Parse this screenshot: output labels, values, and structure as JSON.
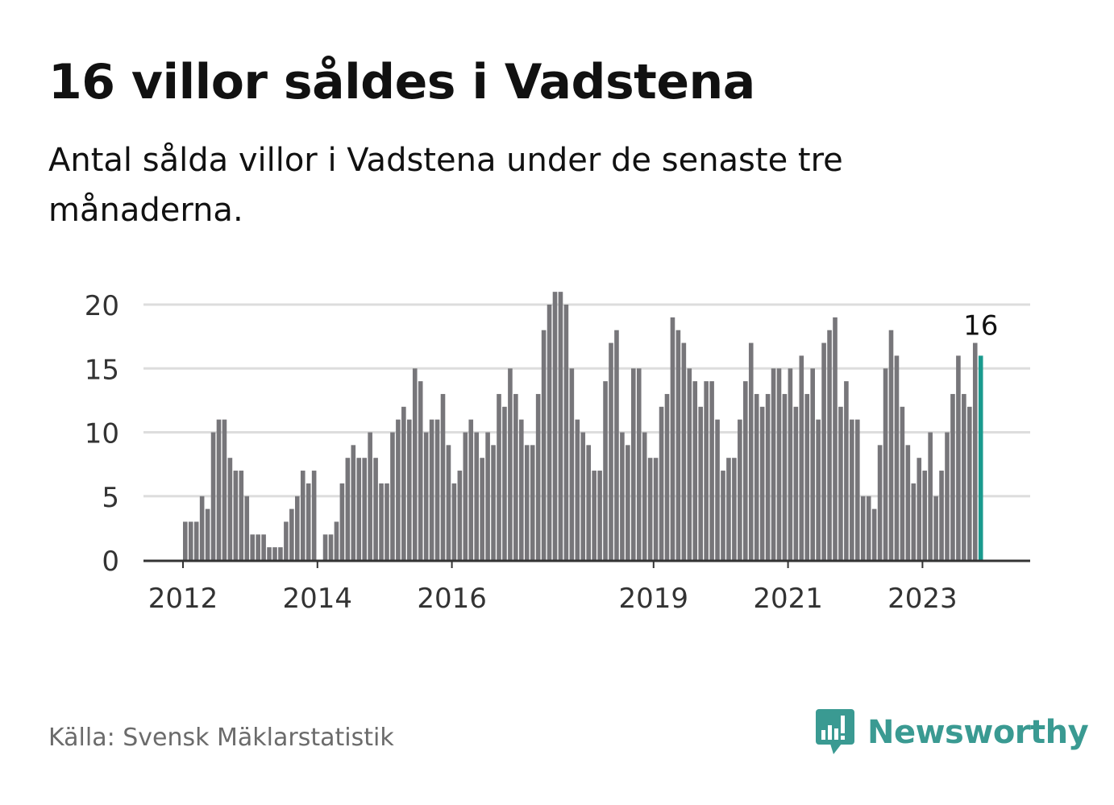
{
  "header": {
    "title": "16 villor såldes i Vadstena",
    "subtitle": "Antal sålda villor i Vadstena under de senaste tre månaderna."
  },
  "footer": {
    "source": "Källa: Svensk Mäklarstatistik",
    "brand": "Newsworthy"
  },
  "colors": {
    "bar": "#77767a",
    "highlight": "#1a9a8e",
    "grid": "#dddddd",
    "axis": "#333333",
    "brand": "#3a9a92"
  },
  "chart_data": {
    "type": "bar",
    "start": "2012-01",
    "ylim": [
      0,
      21
    ],
    "yticks": [
      0,
      5,
      10,
      15,
      20
    ],
    "xtick_labels": [
      "2012",
      "2014",
      "2016",
      "2019",
      "2021",
      "2023"
    ],
    "highlight_last": true,
    "last_value_label": "16",
    "values": [
      3,
      3,
      3,
      5,
      4,
      10,
      11,
      11,
      8,
      7,
      7,
      5,
      2,
      2,
      2,
      1,
      1,
      1,
      3,
      4,
      5,
      7,
      6,
      7,
      0,
      2,
      2,
      3,
      6,
      8,
      9,
      8,
      8,
      10,
      8,
      6,
      6,
      10,
      11,
      12,
      11,
      15,
      14,
      10,
      11,
      11,
      13,
      9,
      6,
      7,
      10,
      11,
      10,
      8,
      10,
      9,
      13,
      12,
      15,
      13,
      11,
      9,
      9,
      13,
      18,
      20,
      21,
      21,
      20,
      15,
      11,
      10,
      9,
      7,
      7,
      14,
      17,
      18,
      10,
      9,
      15,
      15,
      10,
      8,
      8,
      12,
      13,
      19,
      18,
      17,
      15,
      14,
      12,
      14,
      14,
      11,
      7,
      8,
      8,
      11,
      14,
      17,
      13,
      12,
      13,
      15,
      15,
      13,
      15,
      12,
      16,
      13,
      15,
      11,
      17,
      18,
      19,
      12,
      14,
      11,
      11,
      5,
      5,
      4,
      9,
      15,
      18,
      16,
      12,
      9,
      6,
      8,
      7,
      10,
      5,
      7,
      10,
      13,
      16,
      13,
      12,
      17,
      16
    ]
  }
}
